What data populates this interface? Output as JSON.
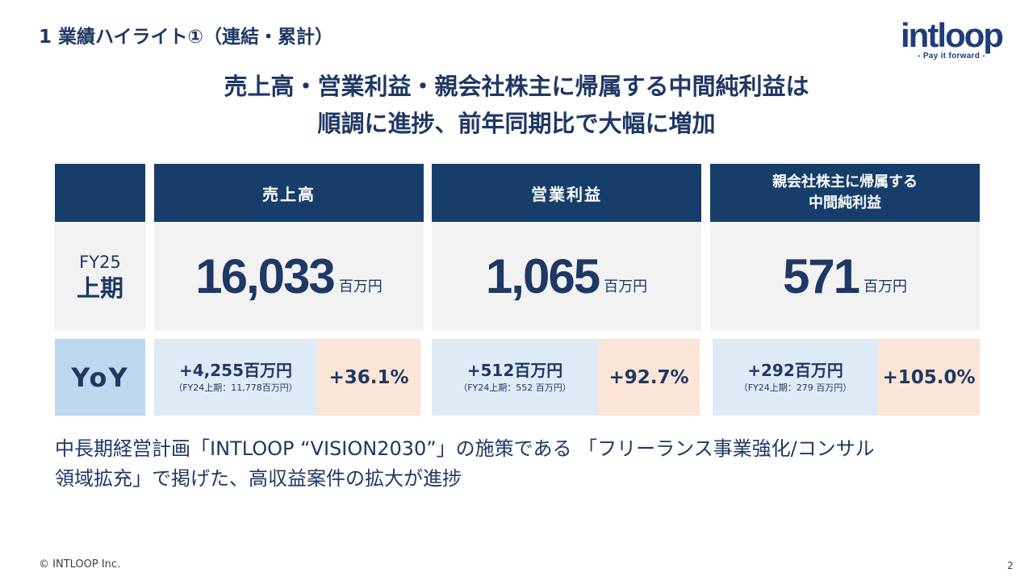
{
  "section_title": "1  業績ハイライト①（連結・累計）",
  "logo": {
    "wordmark": "intloop",
    "tagline": "- Pay it forward -"
  },
  "headline": {
    "line1": "売上高・営業利益・親会社株主に帰属する中間純利益は",
    "line2": "順調に進捗、前年同期比で大幅に増加"
  },
  "table": {
    "period": {
      "fy": "FY25",
      "half": "上期"
    },
    "yoy_label": "YoY",
    "columns": [
      {
        "header": "売上高",
        "value": "16,033",
        "unit": "百万円",
        "yoy_abs": "+4,255百万円",
        "yoy_prev": "（FY24上期：11,778百万円）",
        "yoy_pct": "+36.1%"
      },
      {
        "header": "営業利益",
        "value": "1,065",
        "unit": "百万円",
        "yoy_abs": "+512百万円",
        "yoy_prev": "（FY24上期：552 百万円）",
        "yoy_pct": "+92.7%"
      },
      {
        "header_line1": "親会社株主に帰属する",
        "header_line2": "中間純利益",
        "value": "571",
        "unit": "百万円",
        "yoy_abs": "+292百万円",
        "yoy_prev": "（FY24上期：279 百万円）",
        "yoy_pct": "+105.0%"
      }
    ]
  },
  "note": {
    "line1": "中長期経営計画「INTLOOP “VISION2030”」の施策である 「フリーランス事業強化/コンサル",
    "line2": "領域拡充」で掲げた、高収益案件の拡大が進捗"
  },
  "footer": {
    "copyright": "© INTLOOP  Inc.",
    "page_number": "2"
  },
  "colors": {
    "navy": "#173e6a",
    "text": "#1f3864",
    "gray": "#f2f2f2",
    "yoy_blue": "#bdd7ee",
    "light_blue": "#deebf7",
    "peach": "#fbe5d6"
  }
}
